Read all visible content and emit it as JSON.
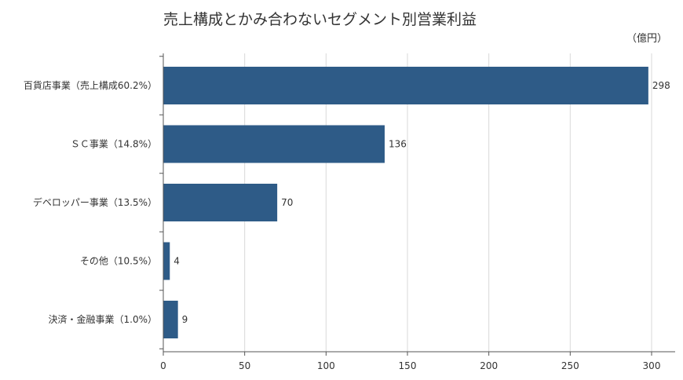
{
  "chart_data": {
    "type": "bar",
    "orientation": "horizontal",
    "title": "売上構成とかみ合わないセグメント別営業利益",
    "unit_label": "（億円）",
    "categories": [
      "百貨店事業（売上構成60.2%）",
      "ＳＣ事業（14.8%）",
      "デベロッパー事業（13.5%）",
      "その他（10.5%）",
      "決済・金融事業（1.0%）"
    ],
    "values": [
      298,
      136,
      70,
      4,
      9
    ],
    "value_labels": [
      "298",
      "136",
      "70",
      "4",
      "9"
    ],
    "xlim": [
      0,
      300
    ],
    "x_ticks": [
      0,
      50,
      100,
      150,
      200,
      250,
      300
    ],
    "x_tick_labels": [
      "0",
      "50",
      "100",
      "150",
      "200",
      "250",
      "300"
    ],
    "grid": "vertical",
    "bar_color": "#2e5b87",
    "grid_color": "#d9d9d9",
    "axis_color": "#555555"
  }
}
